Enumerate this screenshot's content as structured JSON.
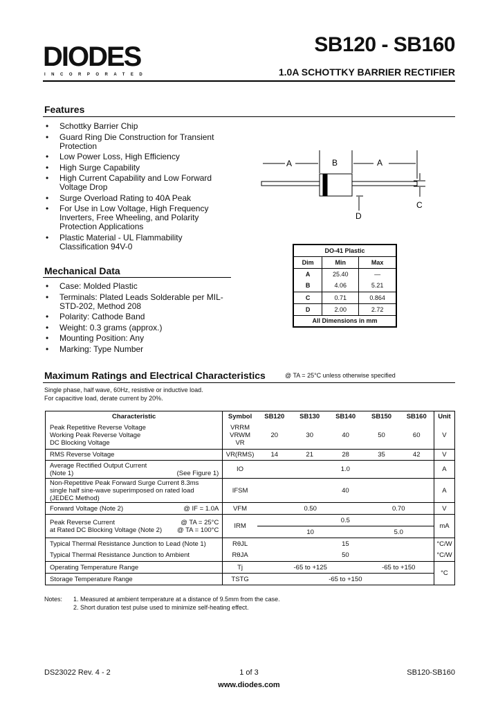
{
  "header": {
    "logo": "DIODES",
    "logo_sub": "INCORPORATED",
    "title": "SB120 - SB160",
    "subtitle": "1.0A SCHOTTKY BARRIER RECTIFIER"
  },
  "features": {
    "title": "Features",
    "items": [
      "Schottky Barrier Chip",
      "Guard Ring Die Construction for Transient Protection",
      "Low Power Loss, High Efficiency",
      "High Surge Capability",
      "High Current Capability and Low Forward Voltage Drop",
      "Surge Overload Rating to 40A Peak",
      "For Use in Low Voltage, High Frequency Inverters, Free Wheeling, and Polarity Protection Applications",
      "Plastic Material - UL Flammability Classification 94V-0"
    ]
  },
  "mechanical": {
    "title": "Mechanical Data",
    "items": [
      "Case: Molded Plastic",
      "Terminals: Plated Leads Solderable per MIL-STD-202, Method 208",
      "Polarity: Cathode Band",
      "Weight:  0.3 grams (approx.)",
      "Mounting Position: Any",
      "Marking: Type Number"
    ]
  },
  "diagram": {
    "labels": [
      "A",
      "B",
      "A",
      "C",
      "D"
    ]
  },
  "dimensions": {
    "title": "DO-41 Plastic",
    "headers": [
      "Dim",
      "Min",
      "Max"
    ],
    "rows": [
      [
        "A",
        "25.40",
        "—"
      ],
      [
        "B",
        "4.06",
        "5.21"
      ],
      [
        "C",
        "0.71",
        "0.864"
      ],
      [
        "D",
        "2.00",
        "2.72"
      ]
    ],
    "footer": "All Dimensions in mm"
  },
  "ratings": {
    "title": "Maximum Ratings and Electrical Characteristics",
    "condition": "@ TA = 25°C unless otherwise specified",
    "note1": "Single phase, half wave, 60Hz, resistive or inductive load.",
    "note2": "For capacitive load, derate current by 20%.",
    "headers": [
      "Characteristic",
      "Symbol",
      "SB120",
      "SB130",
      "SB140",
      "SB150",
      "SB160",
      "Unit"
    ],
    "r1": {
      "c": "Peak Repetitive Reverse Voltage",
      "c2": "Working Peak Reverse Voltage",
      "c3": "DC Blocking Voltage",
      "s": "VRRM",
      "s2": "VRWM",
      "s3": "VR",
      "v": [
        "20",
        "30",
        "40",
        "50",
        "60"
      ],
      "u": "V"
    },
    "r2": {
      "c": "RMS Reverse Voltage",
      "s": "VR(RMS)",
      "v": [
        "14",
        "21",
        "28",
        "35",
        "42"
      ],
      "u": "V"
    },
    "r3": {
      "c": "Average Rectified Output Current",
      "c2": "(Note 1)",
      "cond": "(See Figure 1)",
      "s": "IO",
      "v": "1.0",
      "u": "A"
    },
    "r4": {
      "c": "Non-Repetitive Peak Forward Surge Current 8.3ms",
      "c2": "single half sine-wave superimposed on rated load",
      "c3": "(JEDEC Method)",
      "s": "IFSM",
      "v": "40",
      "u": "A"
    },
    "r5": {
      "c": "Forward Voltage (Note 2)",
      "cond": "@ IF = 1.0A",
      "s": "VFM",
      "v1": "0.50",
      "v2": "0.70",
      "u": "V"
    },
    "r6": {
      "c": "Peak Reverse Current",
      "c2": "at Rated DC Blocking Voltage (Note 2)",
      "cond": "@ TA =  25°C",
      "cond2": "@ TA = 100°C",
      "s": "IRM",
      "v": "0.5",
      "v1": "10",
      "v2": "5.0",
      "u": "mA"
    },
    "r7": {
      "c": "Typical Thermal Resistance Junction to Lead (Note 1)",
      "s": "RθJL",
      "v": "15",
      "u": "°C/W"
    },
    "r8": {
      "c": "Typical Thermal Resistance Junction to Ambient",
      "s": "RθJA",
      "v": "50",
      "u": "°C/W"
    },
    "r9": {
      "c": "Operating Temperature Range",
      "s": "Tj",
      "v1": "-65 to +125",
      "v2": "-65 to +150",
      "u": "°C"
    },
    "r10": {
      "c": "Storage Temperature Range",
      "s": "TSTG",
      "v": "-65 to +150"
    }
  },
  "notes": {
    "label": "Notes:",
    "items": [
      "1. Measured at ambient temperature at a distance of 9.5mm from the case.",
      "2. Short duration test pulse used to minimize self-heating effect."
    ]
  },
  "footer": {
    "doc": "DS23022 Rev. 4 - 2",
    "page": "1 of 3",
    "part": "SB120-SB160",
    "url": "www.diodes.com"
  }
}
